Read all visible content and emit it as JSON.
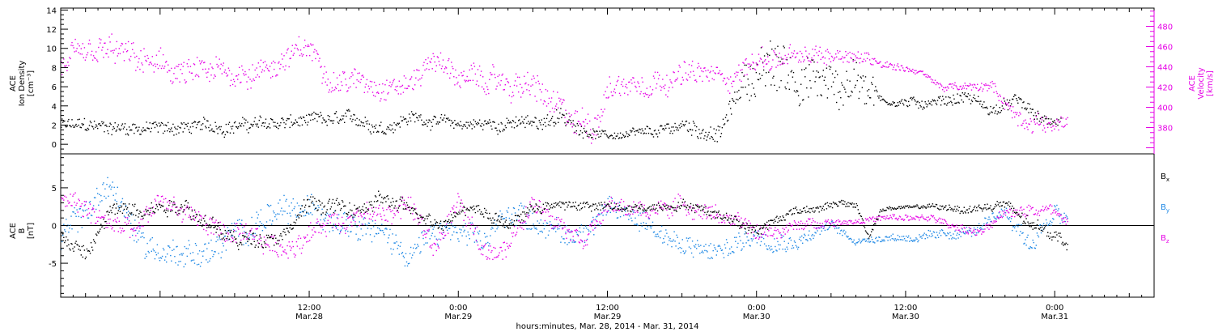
{
  "colors": {
    "black": "#000000",
    "magenta": "#e600e6",
    "blue": "#1e88e5"
  },
  "x_axis": {
    "title": "hours:minutes, Mar. 28, 2014 - Mar. 31, 2014",
    "range": [
      "2014-03-27 16:00",
      "2014-03-31 08:00"
    ],
    "major_ticks": [
      {
        "time": "2014-03-28 12:00",
        "line1": "12:00",
        "line2": "Mar.28"
      },
      {
        "time": "2014-03-29 00:00",
        "line1": "0:00",
        "line2": "Mar.29"
      },
      {
        "time": "2014-03-29 12:00",
        "line1": "12:00",
        "line2": "Mar.29"
      },
      {
        "time": "2014-03-30 00:00",
        "line1": "0:00",
        "line2": "Mar.30"
      },
      {
        "time": "2014-03-30 12:00",
        "line1": "12:00",
        "line2": "Mar.30"
      },
      {
        "time": "2014-03-31 00:00",
        "line1": "0:00",
        "line2": "Mar.31"
      }
    ]
  },
  "chart_data": [
    {
      "type": "scatter",
      "panel": "top",
      "left_axis": {
        "label_lines": [
          "ACE",
          "Ion Density",
          "[cm⁻³]"
        ],
        "range": [
          -1,
          14.2
        ],
        "ticks": [
          0,
          2,
          4,
          6,
          8,
          10,
          12,
          14
        ]
      },
      "right_axis": {
        "label_lines": [
          "ACE",
          "Velocity",
          "[km/s]"
        ],
        "range": [
          354,
          498
        ],
        "ticks": [
          380,
          400,
          420,
          440,
          460,
          480
        ]
      },
      "series": [
        {
          "key": "density",
          "axis": "left",
          "color": "black",
          "trend": [
            [
              "2014-03-27 16:00",
              2.0
            ],
            [
              "2014-03-28 00:00",
              1.7
            ],
            [
              "2014-03-28 06:00",
              2.0
            ],
            [
              "2014-03-28 12:00",
              2.4
            ],
            [
              "2014-03-28 16:00",
              2.6
            ],
            [
              "2014-03-28 18:00",
              1.8
            ],
            [
              "2014-03-28 20:00",
              2.9
            ],
            [
              "2014-03-29 00:00",
              2.1
            ],
            [
              "2014-03-29 06:00",
              2.2
            ],
            [
              "2014-03-29 07:00",
              2.6
            ],
            [
              "2014-03-29 08:00",
              2.9
            ],
            [
              "2014-03-29 10:00",
              1.6
            ],
            [
              "2014-03-29 12:00",
              0.9
            ],
            [
              "2014-03-29 16:00",
              1.2
            ],
            [
              "2014-03-29 18:00",
              2.1
            ],
            [
              "2014-03-29 21:00",
              1.0
            ],
            [
              "2014-03-29 23:00",
              7.0
            ],
            [
              "2014-03-30 02:00",
              8.0
            ],
            [
              "2014-03-30 06:00",
              6.0
            ],
            [
              "2014-03-30 09:00",
              7.0
            ],
            [
              "2014-03-30 10:00",
              4.6
            ],
            [
              "2014-03-30 13:00",
              4.3
            ],
            [
              "2014-03-30 17:00",
              5.0
            ],
            [
              "2014-03-30 19:00",
              3.5
            ],
            [
              "2014-03-30 21:00",
              4.6
            ],
            [
              "2014-03-30 23:00",
              2.4
            ],
            [
              "2014-03-31 00:30",
              2.5
            ]
          ],
          "scatter": [
            [
              "2014-03-27 16:00",
              1.0
            ],
            [
              "2014-03-28 06:00",
              1.0
            ],
            [
              "2014-03-28 12:00",
              1.0
            ],
            [
              "2014-03-28 18:00",
              1.0
            ],
            [
              "2014-03-29 00:00",
              0.8
            ],
            [
              "2014-03-29 08:00",
              1.2
            ],
            [
              "2014-03-29 12:00",
              0.5
            ],
            [
              "2014-03-29 22:30",
              1.4
            ],
            [
              "2014-03-30 00:00",
              4.0
            ],
            [
              "2014-03-30 06:00",
              3.5
            ],
            [
              "2014-03-30 09:00",
              3.5
            ],
            [
              "2014-03-30 10:00",
              0.6
            ],
            [
              "2014-03-30 17:00",
              0.9
            ],
            [
              "2014-03-30 23:00",
              0.8
            ],
            [
              "2014-03-31 00:30",
              0.6
            ]
          ]
        },
        {
          "key": "velocity",
          "axis": "right",
          "color": "magenta",
          "trend": [
            [
              "2014-03-27 16:00",
              440
            ],
            [
              "2014-03-27 20:00",
              455
            ],
            [
              "2014-03-28 02:00",
              432
            ],
            [
              "2014-03-28 08:00",
              436
            ],
            [
              "2014-03-28 10:00",
              448
            ],
            [
              "2014-03-28 12:00",
              458
            ],
            [
              "2014-03-28 14:00",
              428
            ],
            [
              "2014-03-28 20:00",
              422
            ],
            [
              "2014-03-28 22:00",
              450
            ],
            [
              "2014-03-29 00:00",
              430
            ],
            [
              "2014-03-29 06:00",
              420
            ],
            [
              "2014-03-29 09:00",
              385
            ],
            [
              "2014-03-29 11:00",
              385
            ],
            [
              "2014-03-29 12:00",
              420
            ],
            [
              "2014-03-29 18:00",
              433
            ],
            [
              "2014-03-29 22:00",
              430
            ],
            [
              "2014-03-30 00:00",
              448
            ],
            [
              "2014-03-30 04:00",
              448
            ],
            [
              "2014-03-30 07:00",
              455
            ],
            [
              "2014-03-30 10:00",
              445
            ],
            [
              "2014-03-30 13:00",
              436
            ],
            [
              "2014-03-30 15:00",
              420
            ],
            [
              "2014-03-30 19:00",
              420
            ],
            [
              "2014-03-30 21:00",
              390
            ],
            [
              "2014-03-30 23:00",
              385
            ],
            [
              "2014-03-31 01:00",
              385
            ]
          ],
          "scatter": [
            [
              "2014-03-27 16:00",
              20
            ],
            [
              "2014-03-28 06:00",
              18
            ],
            [
              "2014-03-28 12:00",
              16
            ],
            [
              "2014-03-28 18:00",
              16
            ],
            [
              "2014-03-29 00:00",
              15
            ],
            [
              "2014-03-29 09:00",
              22
            ],
            [
              "2014-03-29 12:00",
              18
            ],
            [
              "2014-03-29 22:00",
              15
            ],
            [
              "2014-03-30 06:00",
              14
            ],
            [
              "2014-03-30 09:00",
              8
            ],
            [
              "2014-03-30 12:00",
              4
            ],
            [
              "2014-03-30 18:00",
              6
            ],
            [
              "2014-03-30 21:00",
              12
            ],
            [
              "2014-03-31 01:00",
              10
            ]
          ]
        }
      ]
    },
    {
      "type": "scatter",
      "panel": "bottom",
      "left_axis": {
        "label_lines": [
          "ACE",
          "B",
          "[nT]"
        ],
        "range": [
          -9.5,
          9.5
        ],
        "ticks": [
          -5,
          0,
          5
        ]
      },
      "zero_line": true,
      "series": [
        {
          "key": "bx",
          "name_base": "B",
          "name_sub": "x",
          "color": "black",
          "trend": [
            [
              "2014-03-27 16:00",
              -1.5
            ],
            [
              "2014-03-27 18:00",
              -4.0
            ],
            [
              "2014-03-27 20:00",
              2.0
            ],
            [
              "2014-03-27 23:00",
              2.5
            ],
            [
              "2014-03-28 02:00",
              3.0
            ],
            [
              "2014-03-28 04:00",
              0.0
            ],
            [
              "2014-03-28 06:00",
              -2.0
            ],
            [
              "2014-03-28 10:00",
              -1.0
            ],
            [
              "2014-03-28 12:00",
              3.0
            ],
            [
              "2014-03-28 16:00",
              2.0
            ],
            [
              "2014-03-28 18:00",
              3.5
            ],
            [
              "2014-03-28 20:00",
              2.0
            ],
            [
              "2014-03-28 23:00",
              0.5
            ],
            [
              "2014-03-29 00:00",
              2.5
            ],
            [
              "2014-03-29 02:00",
              2.0
            ],
            [
              "2014-03-29 04:00",
              0.0
            ],
            [
              "2014-03-29 06:00",
              2.5
            ],
            [
              "2014-03-29 10:00",
              2.8
            ],
            [
              "2014-03-29 14:00",
              2.2
            ],
            [
              "2014-03-29 18:00",
              3.0
            ],
            [
              "2014-03-29 22:00",
              1.0
            ],
            [
              "2014-03-30 00:00",
              -0.5
            ],
            [
              "2014-03-30 03:00",
              2.0
            ],
            [
              "2014-03-30 06:00",
              2.8
            ],
            [
              "2014-03-30 08:00",
              2.8
            ],
            [
              "2014-03-30 09:00",
              -1.5
            ],
            [
              "2014-03-30 10:00",
              2.2
            ],
            [
              "2014-03-30 13:00",
              2.6
            ],
            [
              "2014-03-30 17:00",
              2.2
            ],
            [
              "2014-03-30 20:00",
              2.8
            ],
            [
              "2014-03-30 22:00",
              0.0
            ],
            [
              "2014-03-31 00:00",
              -1.0
            ],
            [
              "2014-03-31 01:00",
              -2.5
            ]
          ],
          "scatter": [
            [
              "2014-03-27 16:00",
              1.5
            ],
            [
              "2014-03-28 12:00",
              1.5
            ],
            [
              "2014-03-29 00:00",
              1.2
            ],
            [
              "2014-03-29 12:00",
              0.8
            ],
            [
              "2014-03-30 00:00",
              1.0
            ],
            [
              "2014-03-30 09:00",
              0.5
            ],
            [
              "2014-03-30 12:00",
              0.3
            ],
            [
              "2014-03-30 22:00",
              1.2
            ],
            [
              "2014-03-31 01:00",
              1.0
            ]
          ]
        },
        {
          "key": "by",
          "name_base": "B",
          "name_sub": "y",
          "color": "blue",
          "trend": [
            [
              "2014-03-27 16:00",
              -2.0
            ],
            [
              "2014-03-27 18:00",
              2.0
            ],
            [
              "2014-03-27 20:00",
              5.5
            ],
            [
              "2014-03-27 22:00",
              -1.0
            ],
            [
              "2014-03-28 00:00",
              -3.5
            ],
            [
              "2014-03-28 04:00",
              -3.5
            ],
            [
              "2014-03-28 08:00",
              1.0
            ],
            [
              "2014-03-28 12:00",
              2.0
            ],
            [
              "2014-03-28 16:00",
              1.0
            ],
            [
              "2014-03-28 20:00",
              -3.5
            ],
            [
              "2014-03-28 23:00",
              -0.5
            ],
            [
              "2014-03-29 02:00",
              -2.5
            ],
            [
              "2014-03-29 04:00",
              2.0
            ],
            [
              "2014-03-29 06:00",
              1.0
            ],
            [
              "2014-03-29 09:00",
              -1.5
            ],
            [
              "2014-03-29 12:00",
              2.0
            ],
            [
              "2014-03-29 15:00",
              1.0
            ],
            [
              "2014-03-29 18:00",
              -3.0
            ],
            [
              "2014-03-29 21:00",
              -3.5
            ],
            [
              "2014-03-30 00:00",
              -1.0
            ],
            [
              "2014-03-30 03:00",
              -2.0
            ],
            [
              "2014-03-30 06:00",
              0.0
            ],
            [
              "2014-03-30 08:00",
              -2.0
            ],
            [
              "2014-03-30 10:00",
              -1.5
            ],
            [
              "2014-03-30 14:00",
              -1.5
            ],
            [
              "2014-03-30 18:00",
              -0.5
            ],
            [
              "2014-03-30 20:00",
              2.0
            ],
            [
              "2014-03-30 22:00",
              -2.5
            ],
            [
              "2014-03-31 00:00",
              2.0
            ],
            [
              "2014-03-31 01:00",
              0.0
            ]
          ],
          "scatter": [
            [
              "2014-03-27 16:00",
              2.5
            ],
            [
              "2014-03-28 12:00",
              2.5
            ],
            [
              "2014-03-29 00:00",
              2.2
            ],
            [
              "2014-03-29 12:00",
              2.0
            ],
            [
              "2014-03-30 00:00",
              2.0
            ],
            [
              "2014-03-30 08:00",
              0.6
            ],
            [
              "2014-03-30 18:00",
              1.0
            ],
            [
              "2014-03-30 22:00",
              1.8
            ],
            [
              "2014-03-31 01:00",
              1.6
            ]
          ]
        },
        {
          "key": "bz",
          "name_base": "B",
          "name_sub": "z",
          "color": "magenta",
          "trend": [
            [
              "2014-03-27 16:00",
              4.0
            ],
            [
              "2014-03-27 19:00",
              1.0
            ],
            [
              "2014-03-27 22:00",
              -1.0
            ],
            [
              "2014-03-28 00:00",
              3.5
            ],
            [
              "2014-03-28 04:00",
              0.0
            ],
            [
              "2014-03-28 06:00",
              -1.5
            ],
            [
              "2014-03-28 10:00",
              -3.0
            ],
            [
              "2014-03-28 12:00",
              -1.0
            ],
            [
              "2014-03-28 14:00",
              1.0
            ],
            [
              "2014-03-28 18:00",
              1.5
            ],
            [
              "2014-03-28 20:00",
              3.0
            ],
            [
              "2014-03-28 22:00",
              -3.0
            ],
            [
              "2014-03-29 00:00",
              3.0
            ],
            [
              "2014-03-29 02:00",
              -3.5
            ],
            [
              "2014-03-29 04:00",
              -2.5
            ],
            [
              "2014-03-29 06:00",
              3.0
            ],
            [
              "2014-03-29 08:00",
              1.0
            ],
            [
              "2014-03-29 10:00",
              -1.5
            ],
            [
              "2014-03-29 12:00",
              2.5
            ],
            [
              "2014-03-29 15:00",
              2.0
            ],
            [
              "2014-03-29 18:00",
              2.8
            ],
            [
              "2014-03-29 21:00",
              1.5
            ],
            [
              "2014-03-30 00:00",
              -1.0
            ],
            [
              "2014-03-30 02:00",
              -0.5
            ],
            [
              "2014-03-30 05:00",
              0.5
            ],
            [
              "2014-03-30 08:00",
              0.7
            ],
            [
              "2014-03-30 10:00",
              1.0
            ],
            [
              "2014-03-30 14:00",
              1.0
            ],
            [
              "2014-03-30 18:00",
              -1.0
            ],
            [
              "2014-03-30 20:00",
              1.5
            ],
            [
              "2014-03-30 22:00",
              2.5
            ],
            [
              "2014-03-31 00:00",
              2.0
            ],
            [
              "2014-03-31 01:00",
              1.0
            ]
          ],
          "scatter": [
            [
              "2014-03-27 16:00",
              2.0
            ],
            [
              "2014-03-28 12:00",
              2.0
            ],
            [
              "2014-03-29 00:00",
              2.0
            ],
            [
              "2014-03-29 12:00",
              1.5
            ],
            [
              "2014-03-30 00:00",
              1.5
            ],
            [
              "2014-03-30 08:00",
              0.5
            ],
            [
              "2014-03-30 18:00",
              0.8
            ],
            [
              "2014-03-30 22:00",
              1.2
            ],
            [
              "2014-03-31 01:00",
              1.2
            ]
          ]
        }
      ]
    }
  ]
}
